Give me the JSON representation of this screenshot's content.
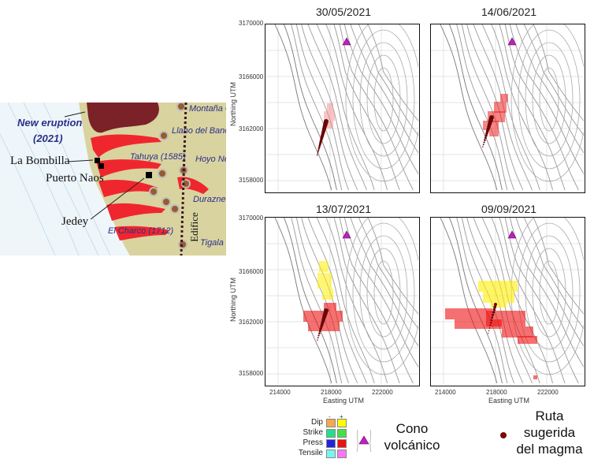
{
  "map": {
    "new_eruption": "New eruption",
    "year": "(2021)",
    "la_bombilla": "La Bombilla",
    "puerto_naos": "Puerto Naos",
    "jedey": "Jedey",
    "tahuya": "Tahuya (1585)",
    "el_charco": "El Charco (1712)",
    "montana": "Montaña C",
    "llano": "Llano del Banc",
    "hoyo": "Hoyo Ne",
    "duraznero": "Duraznero",
    "edifice": "Edifice",
    "tigala": "Tigala",
    "colors": {
      "land": "#d9d3a0",
      "sea": "#eef6fa",
      "lava_2021": "#7a2228",
      "historic_flows": "#f0262e"
    }
  },
  "panels": [
    {
      "title": "30/05/2021"
    },
    {
      "title": "14/06/2021"
    },
    {
      "title": "13/07/2021"
    },
    {
      "title": "09/09/2021"
    }
  ],
  "axes": {
    "ylabel": "Northing UTM",
    "xlabel": "Easting UTM",
    "yticks": [
      "3170000",
      "3166000",
      "3162000",
      "3158000"
    ],
    "xticks": [
      "214000",
      "218000",
      "222000"
    ]
  },
  "legend": {
    "minus": "-",
    "plus": "+",
    "rows": [
      {
        "label": "Dip",
        "minus_color": "#f5a94a",
        "plus_color": "#ffff00"
      },
      {
        "label": "Strike",
        "minus_color": "#22e08a",
        "plus_color": "#44e044"
      },
      {
        "label": "Press",
        "minus_color": "#2222dd",
        "plus_color": "#ee1111"
      },
      {
        "label": "Tensile",
        "minus_color": "#77f5f5",
        "plus_color": "#f57af5"
      }
    ],
    "cone_line1": "Cono",
    "cone_line2": "volcánico",
    "cone_color": "#c020c0",
    "magma_line1": "Ruta",
    "magma_line2": "sugerida",
    "magma_line3": "del magma",
    "magma_color": "#7a0a0a"
  }
}
